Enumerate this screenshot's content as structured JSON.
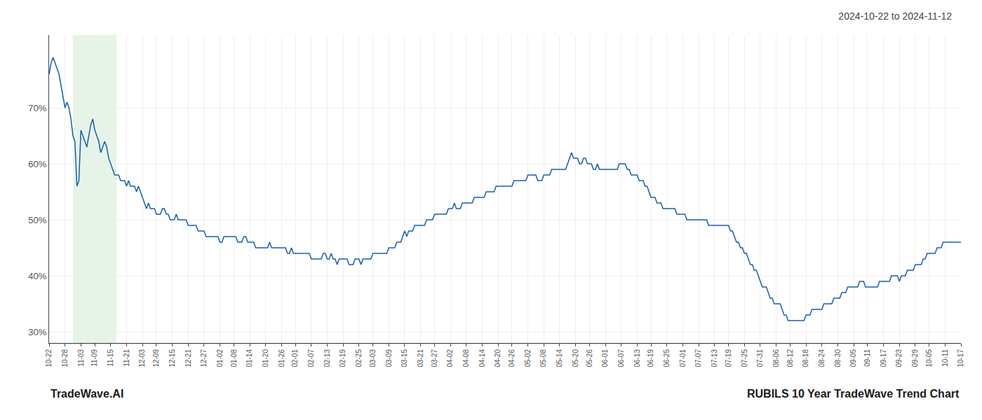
{
  "chart_data": {
    "type": "line",
    "title": "2024-10-22 to 2024-11-12",
    "annotations": [
      "TradeWave.AI",
      "RUBILS 10 Year TradeWave Trend Chart"
    ],
    "color": "#1a5fa8",
    "grid": true,
    "ylim": [
      28,
      83
    ],
    "yticks": [
      {
        "value": 30,
        "label": "30%"
      },
      {
        "value": 40,
        "label": "40%"
      },
      {
        "value": 50,
        "label": "50%"
      },
      {
        "value": 60,
        "label": "60%"
      },
      {
        "value": 70,
        "label": "70%"
      }
    ],
    "highlight": {
      "x0": 12,
      "x1": 34,
      "color": "#c8e6c9"
    },
    "categories": [
      "10-22",
      null,
      null,
      null,
      null,
      null,
      null,
      null,
      "10-28",
      null,
      null,
      null,
      null,
      null,
      null,
      null,
      "11-03",
      null,
      null,
      null,
      null,
      null,
      null,
      "11-09",
      null,
      null,
      null,
      null,
      null,
      null,
      null,
      "11-15",
      null,
      null,
      null,
      null,
      null,
      null,
      null,
      "11-21",
      null,
      null,
      null,
      null,
      null,
      null,
      null,
      "12-03",
      null,
      null,
      null,
      null,
      null,
      null,
      "12-09",
      null,
      null,
      null,
      null,
      null,
      null,
      null,
      "12-15",
      null,
      null,
      null,
      null,
      null,
      null,
      null,
      "12-21",
      null,
      null,
      null,
      null,
      null,
      null,
      null,
      "12-27",
      null,
      null,
      null,
      null,
      null,
      null,
      null,
      "01-02",
      null,
      null,
      null,
      null,
      null,
      null,
      "01-08",
      null,
      null,
      null,
      null,
      null,
      null,
      null,
      "01-14",
      null,
      null,
      null,
      null,
      null,
      null,
      null,
      "01-20",
      null,
      null,
      null,
      null,
      null,
      null,
      null,
      "01-26",
      null,
      null,
      null,
      null,
      null,
      null,
      "02-01",
      null,
      null,
      null,
      null,
      null,
      null,
      null,
      "02-07",
      null,
      null,
      null,
      null,
      null,
      null,
      null,
      "02-13",
      null,
      null,
      null,
      null,
      null,
      null,
      null,
      "02-19",
      null,
      null,
      null,
      null,
      null,
      null,
      null,
      "02-25",
      null,
      null,
      null,
      null,
      null,
      null,
      "03-03",
      null,
      null,
      null,
      null,
      null,
      null,
      null,
      "03-09",
      null,
      null,
      null,
      null,
      null,
      null,
      null,
      "03-15",
      null,
      null,
      null,
      null,
      null,
      null,
      null,
      "03-21",
      null,
      null,
      null,
      null,
      null,
      null,
      "03-27",
      null,
      null,
      null,
      null,
      null,
      null,
      null,
      "04-02",
      null,
      null,
      null,
      null,
      null,
      null,
      null,
      "04-08",
      null,
      null,
      null,
      null,
      null,
      null,
      null,
      "04-14",
      null,
      null,
      null,
      null,
      null,
      null,
      null,
      "04-20",
      null,
      null,
      null,
      null,
      null,
      null,
      "04-26",
      null,
      null,
      null,
      null,
      null,
      null,
      null,
      "05-02",
      null,
      null,
      null,
      null,
      null,
      null,
      null,
      "05-08",
      null,
      null,
      null,
      null,
      null,
      null,
      null,
      "05-14",
      null,
      null,
      null,
      null,
      null,
      null,
      null,
      "05-20",
      null,
      null,
      null,
      null,
      null,
      null,
      "05-26",
      null,
      null,
      null,
      null,
      null,
      null,
      null,
      "06-01",
      null,
      null,
      null,
      null,
      null,
      null,
      null,
      "06-07",
      null,
      null,
      null,
      null,
      null,
      null,
      null,
      "06-13",
      null,
      null,
      null,
      null,
      null,
      null,
      "06-19",
      null,
      null,
      null,
      null,
      null,
      null,
      null,
      "06-25",
      null,
      null,
      null,
      null,
      null,
      null,
      null,
      "07-01",
      null,
      null,
      null,
      null,
      null,
      null,
      null,
      "07-07",
      null,
      null,
      null,
      null,
      null,
      null,
      null,
      "07-13",
      null,
      null,
      null,
      null,
      null,
      null,
      "07-19",
      null,
      null,
      null,
      null,
      null,
      null,
      null,
      "07-25",
      null,
      null,
      null,
      null,
      null,
      null,
      null,
      "07-31",
      null,
      null,
      null,
      null,
      null,
      null,
      null,
      "08-06",
      null,
      null,
      null,
      null,
      null,
      null,
      "08-12",
      null,
      null,
      null,
      null,
      null,
      null,
      null,
      "08-18",
      null,
      null,
      null,
      null,
      null,
      null,
      null,
      "08-24",
      null,
      null,
      null,
      null,
      null,
      null,
      null,
      "08-30",
      null,
      null,
      null,
      null,
      null,
      null,
      null,
      "09-05",
      null,
      null,
      null,
      null,
      null,
      null,
      "09-11",
      null,
      null,
      null,
      null,
      null,
      null,
      null,
      "09-17",
      null,
      null,
      null,
      null,
      null,
      null,
      null,
      "09-23",
      null,
      null,
      null,
      null,
      null,
      null,
      null,
      "09-29",
      null,
      null,
      null,
      null,
      null,
      null,
      "10-05",
      null,
      null,
      null,
      null,
      null,
      null,
      null,
      "10-11",
      null,
      null,
      null,
      null,
      null,
      null,
      null,
      "10-17"
    ],
    "values": [
      76,
      78,
      79,
      78,
      77,
      76,
      74,
      72,
      70,
      71,
      70,
      68,
      65,
      64,
      56,
      57,
      66,
      65,
      64,
      63,
      65,
      67,
      68,
      66,
      65,
      64,
      62,
      63,
      64,
      63,
      61,
      60,
      59,
      58,
      58,
      58,
      57,
      57,
      57,
      56,
      57,
      56,
      56,
      56,
      55,
      56,
      55,
      54,
      53,
      52,
      53,
      52,
      52,
      52,
      51,
      51,
      51,
      52,
      52,
      51,
      51,
      50,
      50,
      50,
      51,
      50,
      50,
      50,
      50,
      50,
      49,
      49,
      49,
      49,
      49,
      48,
      48,
      48,
      48,
      47,
      47,
      47,
      47,
      47,
      47,
      47,
      46,
      46,
      47,
      47,
      47,
      47,
      47,
      47,
      47,
      46,
      46,
      46,
      47,
      47,
      46,
      46,
      46,
      46,
      45,
      45,
      45,
      45,
      45,
      45,
      45,
      46,
      45,
      45,
      45,
      45,
      45,
      45,
      45,
      45,
      44,
      44,
      45,
      44,
      44,
      44,
      44,
      44,
      44,
      44,
      44,
      44,
      43,
      43,
      43,
      43,
      43,
      43,
      44,
      44,
      43,
      43,
      44,
      43,
      43,
      42,
      43,
      43,
      43,
      43,
      43,
      42,
      42,
      42,
      43,
      43,
      43,
      42,
      43,
      43,
      43,
      43,
      43,
      44,
      44,
      44,
      44,
      44,
      44,
      44,
      44,
      45,
      45,
      45,
      45,
      46,
      46,
      46,
      47,
      48,
      47,
      48,
      48,
      48,
      49,
      49,
      49,
      49,
      49,
      49,
      50,
      50,
      50,
      50,
      51,
      51,
      51,
      51,
      51,
      51,
      51,
      52,
      52,
      52,
      53,
      52,
      52,
      52,
      53,
      53,
      53,
      53,
      53,
      53,
      54,
      54,
      54,
      54,
      54,
      54,
      55,
      55,
      55,
      55,
      55,
      56,
      56,
      56,
      56,
      56,
      56,
      56,
      56,
      56,
      57,
      57,
      57,
      57,
      57,
      57,
      57,
      58,
      58,
      58,
      58,
      58,
      57,
      57,
      57,
      58,
      58,
      58,
      58,
      59,
      59,
      59,
      59,
      59,
      59,
      59,
      59,
      60,
      61,
      62,
      61,
      61,
      61,
      60,
      60,
      61,
      61,
      60,
      60,
      60,
      59,
      59,
      60,
      59,
      59,
      59,
      59,
      59,
      59,
      59,
      59,
      59,
      59,
      60,
      60,
      60,
      60,
      59,
      59,
      58,
      58,
      58,
      58,
      57,
      57,
      57,
      56,
      56,
      55,
      54,
      54,
      54,
      53,
      53,
      53,
      52,
      52,
      52,
      52,
      52,
      52,
      52,
      51,
      51,
      51,
      51,
      51,
      50,
      50,
      50,
      50,
      50,
      50,
      50,
      50,
      50,
      50,
      50,
      49,
      49,
      49,
      49,
      49,
      49,
      49,
      49,
      49,
      49,
      49,
      48,
      48,
      47,
      46,
      46,
      45,
      45,
      44,
      44,
      43,
      42,
      42,
      41,
      41,
      40,
      39,
      38,
      38,
      38,
      37,
      36,
      36,
      35,
      35,
      35,
      35,
      34,
      33,
      33,
      32,
      32,
      32,
      32,
      32,
      32,
      32,
      32,
      32,
      33,
      33,
      33,
      34,
      34,
      34,
      34,
      34,
      34,
      35,
      35,
      35,
      35,
      35,
      36,
      36,
      36,
      36,
      37,
      37,
      37,
      38,
      38,
      38,
      38,
      38,
      38,
      39,
      39,
      39,
      38,
      38,
      38,
      38,
      38,
      38,
      38,
      39,
      39,
      39,
      39,
      39,
      39,
      40,
      40,
      40,
      40,
      39,
      40,
      40,
      40,
      41,
      41,
      41,
      41,
      42,
      42,
      42,
      42,
      43,
      43,
      44,
      44,
      44,
      44,
      44,
      45,
      45,
      45,
      46,
      46,
      46,
      46,
      46,
      46,
      46,
      46,
      46,
      46
    ]
  }
}
